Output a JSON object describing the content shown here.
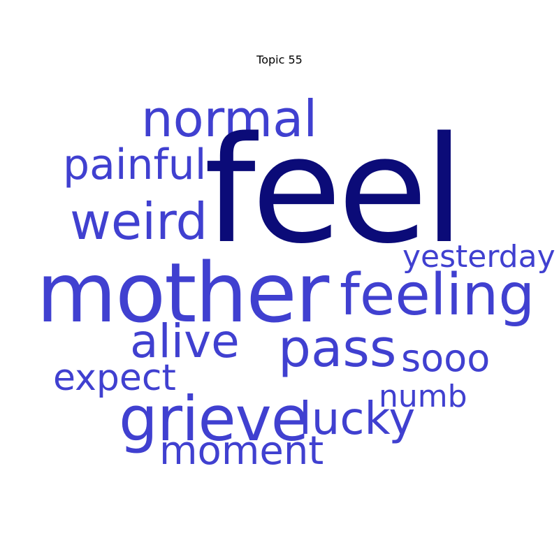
{
  "title": "Topic 55",
  "colors": {
    "top_word": "#0b0b78",
    "word": "#4040d0",
    "background": "#ffffff"
  },
  "words": {
    "feel": "feel",
    "mother": "mother",
    "normal": "normal",
    "painful": "painful",
    "weird": "weird",
    "feeling": "feeling",
    "yesterday": "yesterday",
    "alive": "alive",
    "pass": "pass",
    "sooo": "sooo",
    "expect": "expect",
    "numb": "numb",
    "grieve": "grieve",
    "lucky": "lucky",
    "moment": "moment"
  }
}
